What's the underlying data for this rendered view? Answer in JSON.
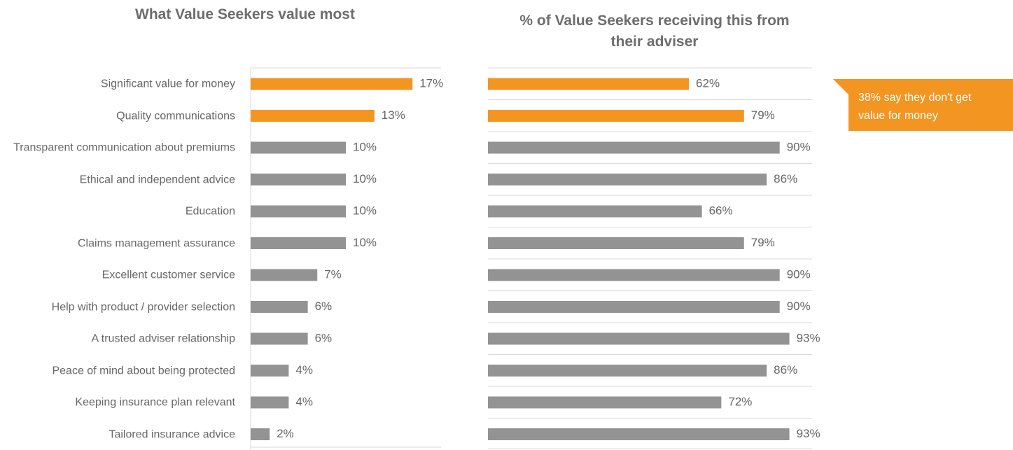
{
  "chart_data": [
    {
      "type": "bar",
      "orientation": "horizontal",
      "title": "What Value Seekers value most",
      "categories": [
        "Significant value for money",
        "Quality communications",
        "Transparent communication about premiums",
        "Ethical and independent advice",
        "Education",
        "Claims management assurance",
        "Excellent customer service",
        "Help with product / provider selection",
        "A trusted adviser relationship",
        "Peace of mind about being protected",
        "Keeping insurance plan relevant",
        "Tailored insurance advice"
      ],
      "values": [
        17,
        13,
        10,
        10,
        10,
        10,
        7,
        6,
        6,
        4,
        4,
        2
      ],
      "value_labels": [
        "17%",
        "13%",
        "10%",
        "10%",
        "10%",
        "10%",
        "7%",
        "6%",
        "6%",
        "4%",
        "4%",
        "2%"
      ],
      "colors": [
        "#f39521",
        "#f39521",
        "#939393",
        "#939393",
        "#939393",
        "#939393",
        "#939393",
        "#939393",
        "#939393",
        "#939393",
        "#939393",
        "#939393"
      ],
      "xlim": [
        0,
        20
      ]
    },
    {
      "type": "bar",
      "orientation": "horizontal",
      "title": "% of Value Seekers receiving this from their adviser",
      "values": [
        62,
        79,
        90,
        86,
        66,
        79,
        90,
        90,
        93,
        86,
        72,
        93
      ],
      "value_labels": [
        "62%",
        "79%",
        "90%",
        "86%",
        "66%",
        "79%",
        "90%",
        "90%",
        "93%",
        "86%",
        "72%",
        "93%"
      ],
      "colors": [
        "#f39521",
        "#f39521",
        "#939393",
        "#939393",
        "#939393",
        "#939393",
        "#939393",
        "#939393",
        "#939393",
        "#939393",
        "#939393",
        "#939393"
      ],
      "xlim": [
        0,
        100
      ],
      "annotation": "38% say they don't get value for money"
    }
  ]
}
